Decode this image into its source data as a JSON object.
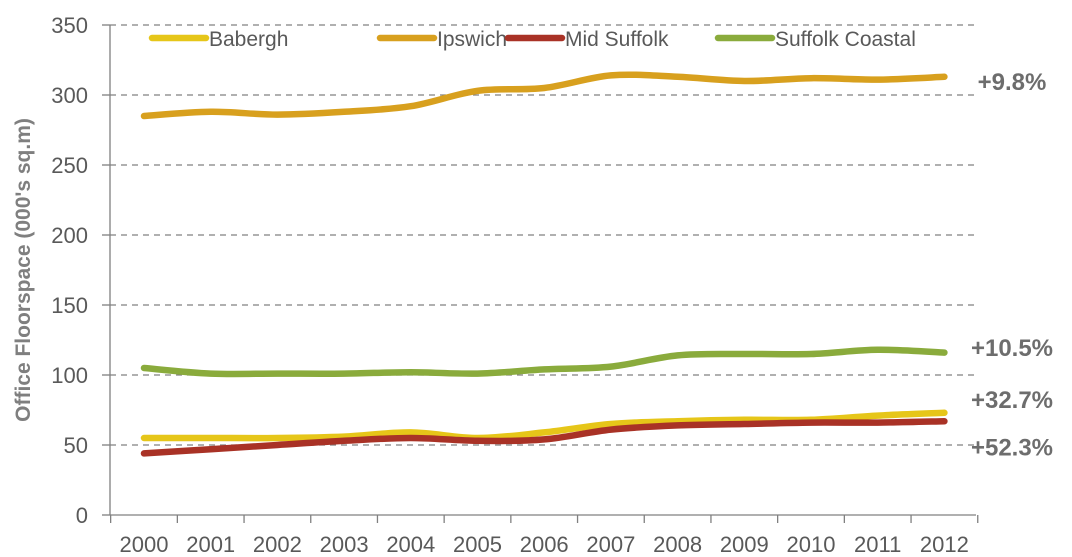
{
  "chart_data": {
    "type": "line",
    "title": "",
    "xlabel": "",
    "ylabel": "Office Floorspace (000's sq.m)",
    "x": [
      "2000",
      "2001",
      "2002",
      "2003",
      "2004",
      "2005",
      "2006",
      "2007",
      "2008",
      "2009",
      "2010",
      "2011",
      "2012"
    ],
    "ylim": [
      0,
      350
    ],
    "yticks": [
      0,
      50,
      100,
      150,
      200,
      250,
      300,
      350
    ],
    "grid": "horizontal-dashed",
    "legend": "top",
    "series": [
      {
        "name": "Babergh",
        "color": "#e6c619",
        "values": [
          55,
          55,
          55,
          56,
          59,
          55,
          59,
          65,
          67,
          68,
          68,
          71,
          73
        ]
      },
      {
        "name": "Ipswich",
        "color": "#d8a01e",
        "values": [
          285,
          288,
          286,
          288,
          292,
          303,
          305,
          314,
          313,
          310,
          312,
          311,
          313
        ]
      },
      {
        "name": "Mid Suffolk",
        "color": "#a93226",
        "values": [
          44,
          47,
          50,
          53,
          55,
          53,
          54,
          61,
          64,
          65,
          66,
          66,
          67
        ]
      },
      {
        "name": "Suffolk Coastal",
        "color": "#8aab3c",
        "values": [
          105,
          101,
          101,
          101,
          102,
          101,
          104,
          106,
          114,
          115,
          115,
          118,
          116
        ]
      }
    ],
    "annotations": [
      {
        "text": "+9.8%",
        "y": 310
      },
      {
        "text": "+10.5%",
        "y": 120
      },
      {
        "text": "+32.7%",
        "y": 83
      },
      {
        "text": "+52.3%",
        "y": 49
      }
    ]
  }
}
